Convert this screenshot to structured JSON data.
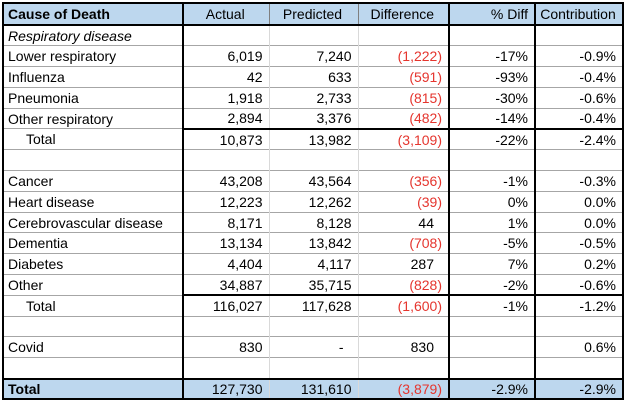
{
  "colors": {
    "header_bg": "#bdd7ee",
    "negative_text": "#e5352e",
    "row_grid": "#a6a6a6",
    "column_grid": "#d9d9d9",
    "outline": "#000000"
  },
  "table": {
    "columns": [
      "Cause of Death",
      "Actual",
      "Predicted",
      "Difference",
      "% Diff",
      "Contribution"
    ],
    "rows": [
      {
        "style": "section",
        "cells": [
          "Respiratory disease",
          "",
          "",
          "",
          "",
          ""
        ]
      },
      {
        "style": "data",
        "cells": [
          "Lower respiratory",
          "6,019",
          "7,240",
          "(1,222)",
          "-17%",
          "-0.9%"
        ]
      },
      {
        "style": "data",
        "cells": [
          "Influenza",
          "42",
          "633",
          "(591)",
          "-93%",
          "-0.4%"
        ]
      },
      {
        "style": "data",
        "cells": [
          "Pneumonia",
          "1,918",
          "2,733",
          "(815)",
          "-30%",
          "-0.6%"
        ]
      },
      {
        "style": "data",
        "cells": [
          "Other respiratory",
          "2,894",
          "3,376",
          "(482)",
          "-14%",
          "-0.4%"
        ]
      },
      {
        "style": "subtotal",
        "cells": [
          "Total",
          "10,873",
          "13,982",
          "(3,109)",
          "-22%",
          "-2.4%"
        ]
      },
      {
        "style": "blank",
        "cells": [
          "",
          "",
          "",
          "",
          "",
          ""
        ]
      },
      {
        "style": "data",
        "cells": [
          "Cancer",
          "43,208",
          "43,564",
          "(356)",
          "-1%",
          "-0.3%"
        ]
      },
      {
        "style": "data",
        "cells": [
          "Heart disease",
          "12,223",
          "12,262",
          "(39)",
          "0%",
          "0.0%"
        ]
      },
      {
        "style": "data",
        "cells": [
          "Cerebrovascular disease",
          "8,171",
          "8,128",
          "44",
          "1%",
          "0.0%"
        ]
      },
      {
        "style": "data",
        "cells": [
          "Dementia",
          "13,134",
          "13,842",
          "(708)",
          "-5%",
          "-0.5%"
        ]
      },
      {
        "style": "data",
        "cells": [
          "Diabetes",
          "4,404",
          "4,117",
          "287",
          "7%",
          "0.2%"
        ]
      },
      {
        "style": "data",
        "cells": [
          "Other",
          "34,887",
          "35,715",
          "(828)",
          "-2%",
          "-0.6%"
        ]
      },
      {
        "style": "subtotal",
        "cells": [
          "Total",
          "116,027",
          "117,628",
          "(1,600)",
          "-1%",
          "-1.2%"
        ]
      },
      {
        "style": "blank",
        "cells": [
          "",
          "",
          "",
          "",
          "",
          ""
        ]
      },
      {
        "style": "data",
        "cells": [
          "Covid",
          "830",
          "-",
          "830",
          "",
          "0.6%"
        ]
      },
      {
        "style": "blank",
        "cells": [
          "",
          "",
          "",
          "",
          "",
          ""
        ]
      },
      {
        "style": "grand",
        "cells": [
          "Total",
          "127,730",
          "131,610",
          "(3,879)",
          "-2.9%",
          "-2.9%"
        ]
      }
    ]
  }
}
